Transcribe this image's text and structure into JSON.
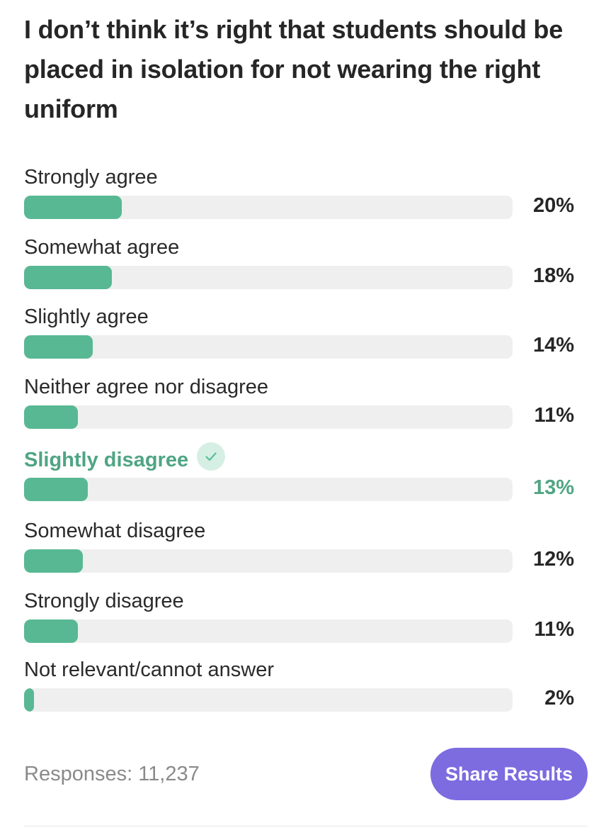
{
  "question": "I don’t think it’s right that students should be placed in isolation for not wearing the right uniform",
  "options": [
    {
      "label": "Strongly agree",
      "percent_text": "20%",
      "value": 20,
      "selected": false
    },
    {
      "label": "Somewhat agree",
      "percent_text": "18%",
      "value": 18,
      "selected": false
    },
    {
      "label": "Slightly agree",
      "percent_text": "14%",
      "value": 14,
      "selected": false
    },
    {
      "label": "Neither agree nor disagree",
      "percent_text": "11%",
      "value": 11,
      "selected": false
    },
    {
      "label": "Slightly disagree",
      "percent_text": "13%",
      "value": 13,
      "selected": true
    },
    {
      "label": "Somewhat disagree",
      "percent_text": "12%",
      "value": 12,
      "selected": false
    },
    {
      "label": "Strongly disagree",
      "percent_text": "11%",
      "value": 11,
      "selected": false
    },
    {
      "label": "Not relevant/cannot answer",
      "percent_text": "2%",
      "value": 2,
      "selected": false
    }
  ],
  "selected_icon": "checkmark-icon",
  "footer": {
    "responses_label": "Responses: 11,237",
    "share_button_label": "Share Results"
  },
  "colors": {
    "bar_fill": "#58b894",
    "bar_track": "#efefef",
    "selected_text": "#4fa583",
    "share_button": "#7d6be0"
  }
}
